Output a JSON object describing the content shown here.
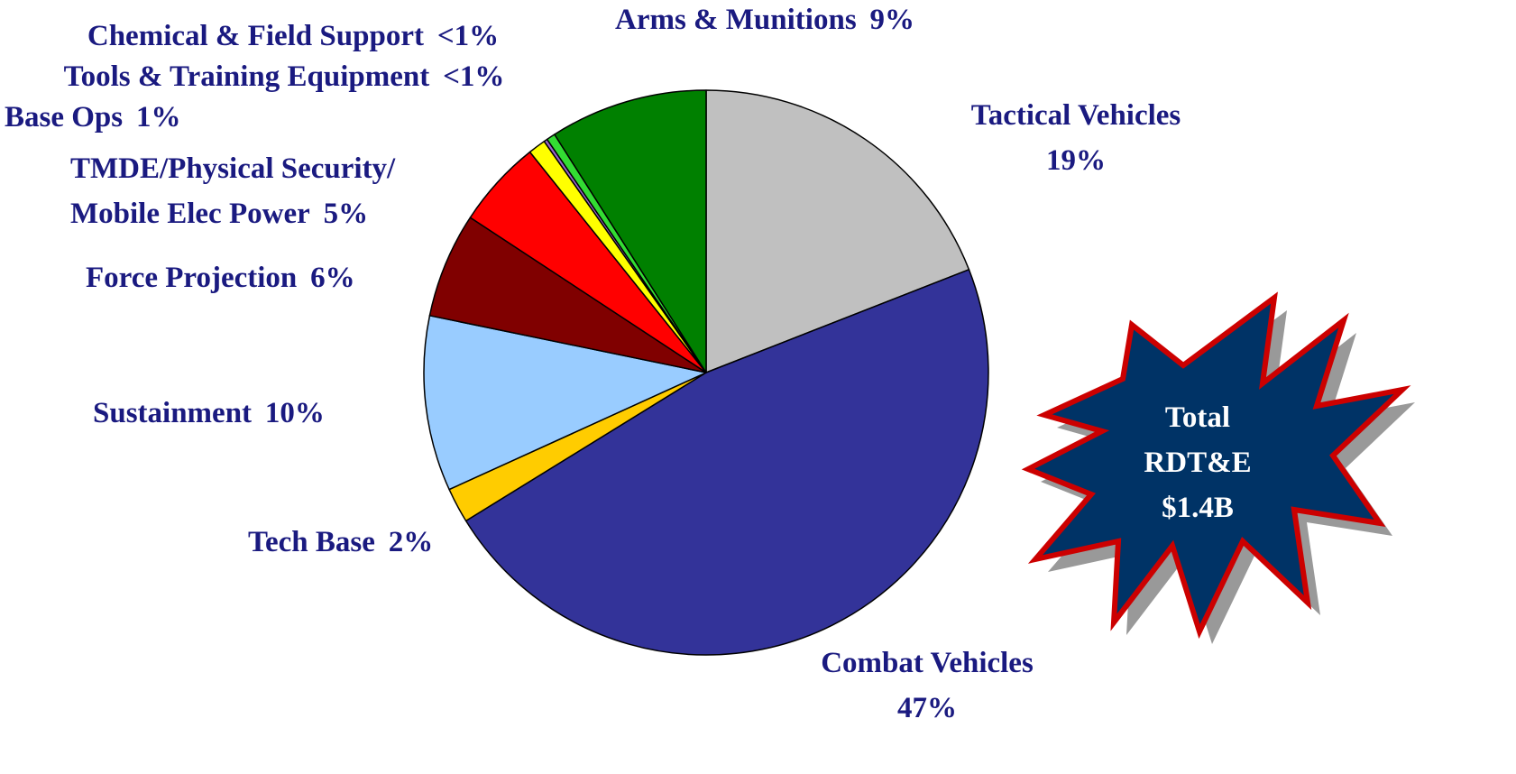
{
  "chart_data": {
    "type": "pie",
    "categories": [
      "Tactical Vehicles",
      "Combat Vehicles",
      "Tech Base",
      "Sustainment",
      "Force Projection",
      "TMDE/Physical Security/\nMobile Elec Power",
      "Base Ops",
      "Tools & Training Equipment",
      "Chemical & Field Support",
      "Arms & Munitions"
    ],
    "values": [
      19,
      47,
      2,
      10,
      6,
      5,
      1,
      0.2,
      0.5,
      9
    ],
    "value_labels": [
      "19%",
      "47%",
      "2%",
      "10%",
      "6%",
      "5%",
      "1%",
      "<1%",
      "<1%",
      "9%"
    ],
    "colors": [
      "#c0c0c0",
      "#333399",
      "#ffcc00",
      "#99ccff",
      "#800000",
      "#ff0000",
      "#ffff00",
      "#9966cc",
      "#33dd33",
      "#008000"
    ],
    "annotation": "Total\nRDT&E\n$1.4B"
  }
}
